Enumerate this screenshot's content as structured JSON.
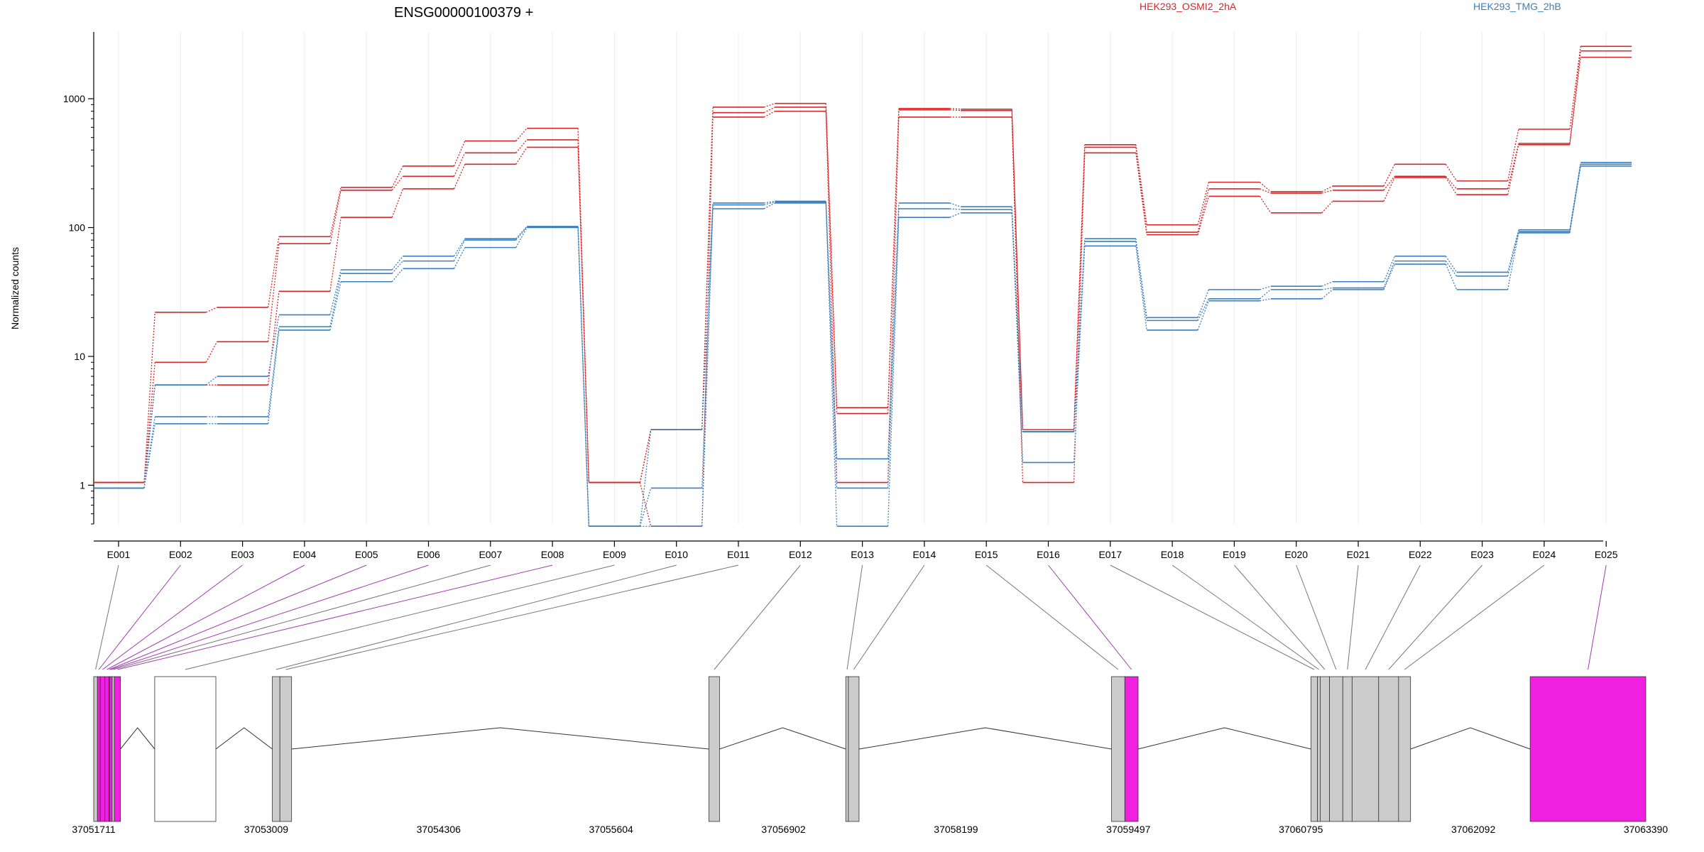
{
  "figure": {
    "title": "ENSG00000100379 +",
    "ylabel": "Normalized counts",
    "legend": [
      {
        "name": "HEK293_OSMI2_2hA",
        "color": "#d62728"
      },
      {
        "name": "HEK293_TMG_2hB",
        "color": "#3a7fbf"
      }
    ]
  },
  "chart_data": {
    "type": "line",
    "title": "ENSG00000100379 +",
    "ylabel": "Normalized counts",
    "yscale": "log",
    "ylim": [
      0.5,
      3300
    ],
    "yticks": [
      1,
      10,
      100,
      1000
    ],
    "ytick_labels": [
      "1",
      "10",
      "100",
      "1000"
    ],
    "grid": "vertical",
    "legend_position": "top",
    "categories": [
      "E001",
      "E002",
      "E003",
      "E004",
      "E005",
      "E006",
      "E007",
      "E008",
      "E009",
      "E010",
      "E011",
      "E012",
      "E013",
      "E014",
      "E015",
      "E016",
      "E017",
      "E018",
      "E019",
      "E020",
      "E021",
      "E022",
      "E023",
      "E024",
      "E025"
    ],
    "series": [
      {
        "name": "HEK293_OSMI2_2hA",
        "color": "#d62728",
        "values": [
          1.05,
          22,
          24,
          85,
          205,
          300,
          470,
          590,
          1.05,
          2.7,
          860,
          920,
          4,
          840,
          830,
          2.7,
          440,
          105,
          225,
          190,
          210,
          310,
          230,
          580,
          2550
        ]
      },
      {
        "name": "HEK293_OSMI2_2hA",
        "color": "#d62728",
        "values": [
          1.05,
          9,
          13,
          75,
          195,
          250,
          380,
          480,
          1.05,
          2.7,
          780,
          860,
          3.6,
          820,
          810,
          2.6,
          420,
          92,
          200,
          185,
          195,
          250,
          200,
          450,
          2350
        ]
      },
      {
        "name": "HEK293_OSMI2_2hA",
        "color": "#d62728",
        "values": [
          1.05,
          6,
          6,
          32,
          120,
          200,
          310,
          420,
          1.05,
          0.48,
          720,
          800,
          1.05,
          720,
          720,
          1.05,
          380,
          88,
          175,
          130,
          160,
          245,
          180,
          440,
          2100
        ]
      },
      {
        "name": "HEK293_TMG_2hB",
        "color": "#3a7fbf",
        "values": [
          0.95,
          6,
          7,
          21,
          47,
          60,
          82,
          102,
          0.48,
          2.7,
          155,
          160,
          1.6,
          155,
          145,
          2.6,
          82,
          20,
          33,
          35,
          38,
          60,
          45,
          96,
          320
        ]
      },
      {
        "name": "HEK293_TMG_2hB",
        "color": "#3a7fbf",
        "values": [
          0.95,
          3.4,
          3.4,
          17,
          44,
          55,
          80,
          101,
          0.48,
          0.95,
          150,
          158,
          0.95,
          140,
          138,
          1.5,
          78,
          19,
          28,
          33,
          34,
          55,
          42,
          93,
          310
        ]
      },
      {
        "name": "HEK293_TMG_2hB",
        "color": "#3a7fbf",
        "values": [
          0.95,
          3,
          3,
          16,
          38,
          48,
          70,
          100,
          0.48,
          0.48,
          140,
          155,
          0.48,
          120,
          130,
          2.6,
          72,
          16,
          27,
          28,
          33,
          52,
          33,
          91,
          300
        ]
      }
    ],
    "gene_model": {
      "coordinate_labels": [
        "37051711",
        "37053009",
        "37054306",
        "37055604",
        "37056902",
        "37058199",
        "37059497",
        "37060795",
        "37062092",
        "37063390"
      ],
      "start": 37051711,
      "end": 37063390,
      "tested_color": "#cccccc",
      "highlight_color": "#f020e0",
      "exons": [
        {
          "id": "E001",
          "start": 37051711,
          "end": 37051739,
          "highlight": false
        },
        {
          "id": "E002",
          "start": 37051739,
          "end": 37051760,
          "highlight": true
        },
        {
          "id": "E003",
          "start": 37051760,
          "end": 37051795,
          "highlight": true
        },
        {
          "id": "E004",
          "start": 37051795,
          "end": 37051825,
          "highlight": true
        },
        {
          "id": "E005",
          "start": 37051825,
          "end": 37051830,
          "highlight": true
        },
        {
          "id": "E006",
          "start": 37051830,
          "end": 37051850,
          "highlight": true
        },
        {
          "id": "E007",
          "start": 37051850,
          "end": 37051866,
          "highlight": false
        },
        {
          "id": "E008",
          "start": 37051866,
          "end": 37051912,
          "highlight": true
        },
        {
          "id": "E009",
          "start": 37052170,
          "end": 37052630,
          "highlight": false,
          "untested": true
        },
        {
          "id": "E010",
          "start": 37053055,
          "end": 37053112,
          "highlight": false
        },
        {
          "id": "E011",
          "start": 37053112,
          "end": 37053200,
          "highlight": false
        },
        {
          "id": "E012",
          "start": 37056340,
          "end": 37056420,
          "highlight": false
        },
        {
          "id": "E013",
          "start": 37057370,
          "end": 37057390,
          "highlight": false
        },
        {
          "id": "E014",
          "start": 37057390,
          "end": 37057470,
          "highlight": false
        },
        {
          "id": "E015",
          "start": 37059370,
          "end": 37059470,
          "highlight": false
        },
        {
          "id": "E016",
          "start": 37059470,
          "end": 37059570,
          "highlight": true
        },
        {
          "id": "E017",
          "start": 37060870,
          "end": 37060920,
          "highlight": false
        },
        {
          "id": "E018",
          "start": 37060920,
          "end": 37060940,
          "highlight": false
        },
        {
          "id": "E019",
          "start": 37060940,
          "end": 37061010,
          "highlight": false
        },
        {
          "id": "E020",
          "start": 37061010,
          "end": 37061110,
          "highlight": false
        },
        {
          "id": "E021",
          "start": 37061110,
          "end": 37061180,
          "highlight": false
        },
        {
          "id": "E022",
          "start": 37061180,
          "end": 37061380,
          "highlight": false
        },
        {
          "id": "E023",
          "start": 37061380,
          "end": 37061530,
          "highlight": false
        },
        {
          "id": "E024",
          "start": 37061530,
          "end": 37061620,
          "highlight": false
        },
        {
          "id": "E025",
          "start": 37062520,
          "end": 37063390,
          "highlight": true
        }
      ],
      "introns": [
        [
          37051912,
          37052170
        ],
        [
          37052630,
          37053055
        ],
        [
          37053200,
          37056340
        ],
        [
          37056420,
          37057370
        ],
        [
          37057470,
          37059370
        ],
        [
          37059570,
          37060870
        ],
        [
          37061620,
          37062520
        ]
      ]
    }
  }
}
